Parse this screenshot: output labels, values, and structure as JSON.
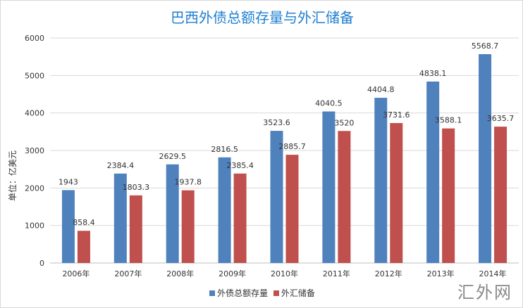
{
  "chart_data": {
    "type": "bar",
    "title": "巴西外债总额存量与外汇储备",
    "ylabel": "单位：亿美元",
    "xlabel": "",
    "ylim": [
      0,
      6000
    ],
    "yticks": [
      0,
      1000,
      2000,
      3000,
      4000,
      5000,
      6000
    ],
    "grid": true,
    "legend_position": "bottom",
    "categories": [
      "2006年",
      "2007年",
      "2008年",
      "2009年",
      "2010年",
      "2011年",
      "2012年",
      "2013年",
      "2014年"
    ],
    "series": [
      {
        "name": "外债总额存量",
        "color": "#4f81bd",
        "values": [
          1943,
          2384.4,
          2629.5,
          2816.5,
          3523.6,
          4040.5,
          4404.8,
          4838.1,
          5568.7
        ]
      },
      {
        "name": "外汇储备",
        "color": "#c0504d",
        "values": [
          858.4,
          1803.3,
          1937.8,
          2385.4,
          2885.7,
          3520,
          3731.6,
          3588.1,
          3635.7
        ]
      }
    ]
  },
  "watermark": "汇外网"
}
